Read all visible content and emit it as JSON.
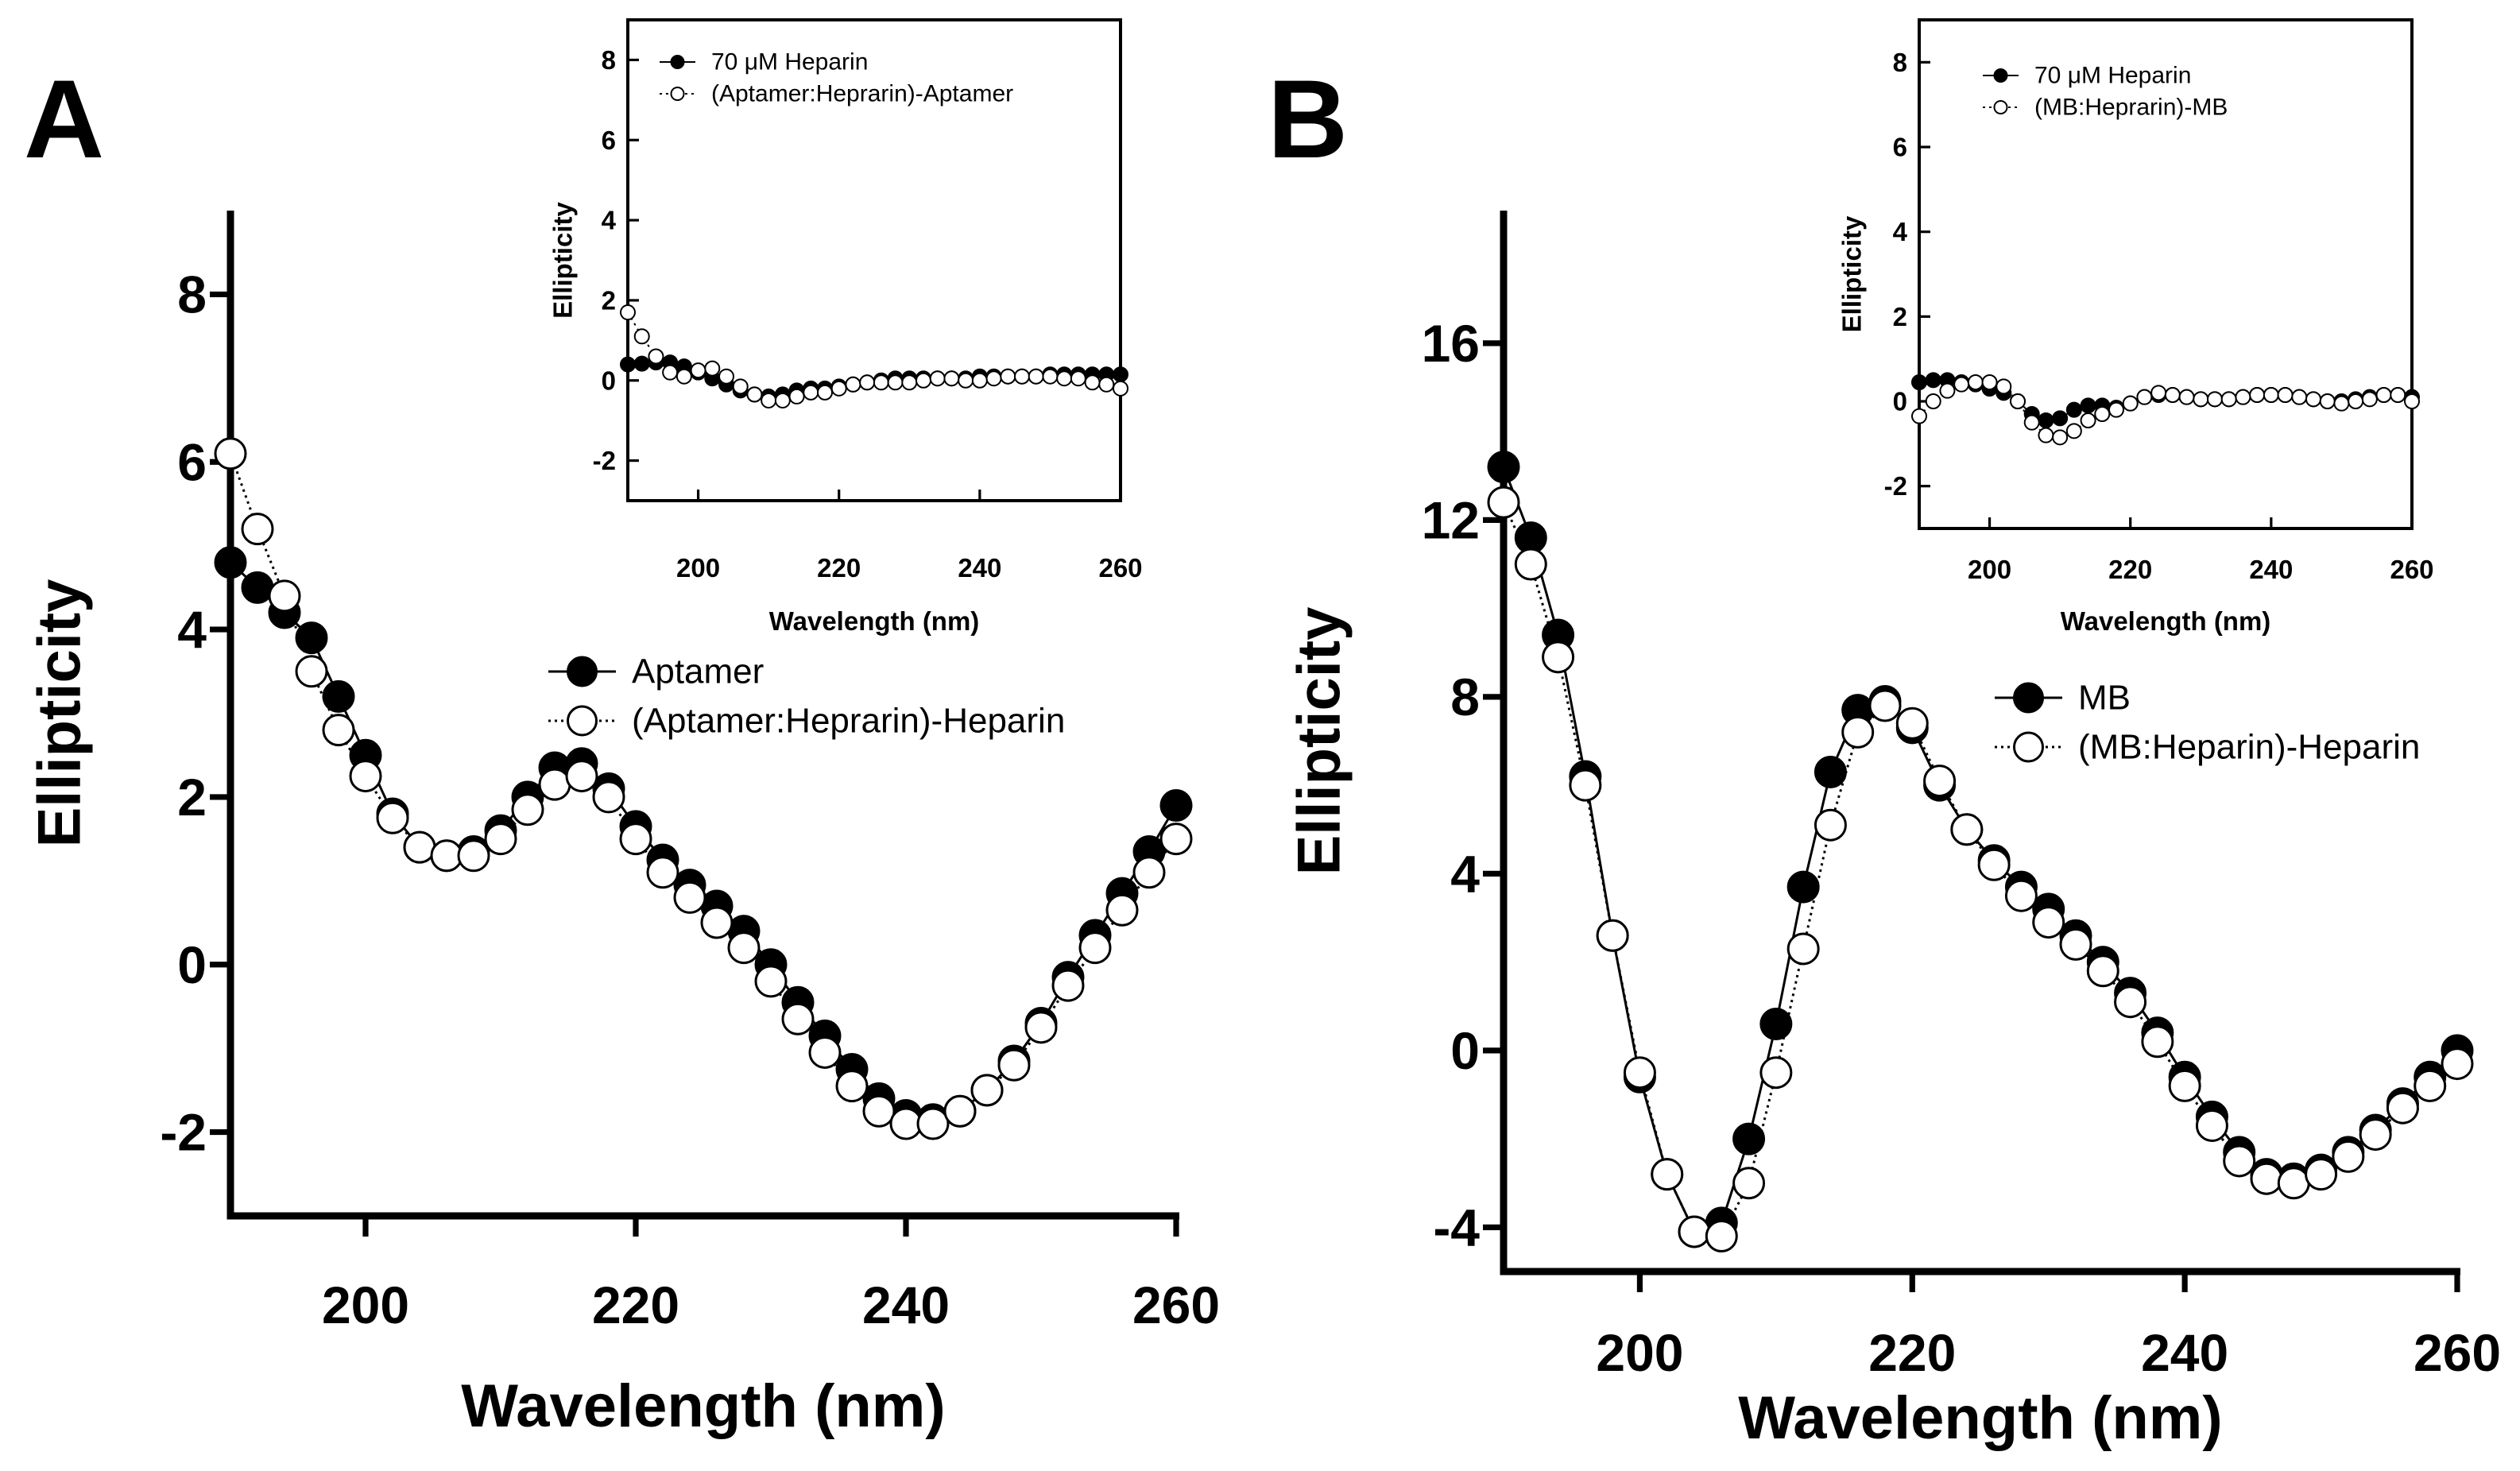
{
  "figure": {
    "panels": [
      {
        "label": "A",
        "main_chart": 0,
        "inset_chart": 1
      },
      {
        "label": "B",
        "main_chart": 2,
        "inset_chart": 3
      }
    ]
  },
  "chart_data": [
    {
      "id": "A-main",
      "type": "scatter",
      "title": "",
      "xlabel": "Wavelength (nm)",
      "ylabel": "Ellipticity",
      "xlim": [
        190,
        260
      ],
      "ylim": [
        -3,
        9
      ],
      "xticks": [
        200,
        220,
        240,
        260
      ],
      "yticks": [
        -2,
        0,
        2,
        4,
        6,
        8
      ],
      "grid": false,
      "legend": "center-right",
      "series": [
        {
          "name": "Aptamer",
          "marker": "filled-circle",
          "line": "solid",
          "x": [
            190,
            192,
            194,
            196,
            198,
            200,
            202,
            204,
            206,
            208,
            210,
            212,
            214,
            216,
            218,
            220,
            222,
            224,
            226,
            228,
            230,
            232,
            234,
            236,
            238,
            240,
            242,
            244,
            246,
            248,
            250,
            252,
            254,
            256,
            258,
            260
          ],
          "y": [
            4.8,
            4.5,
            4.2,
            3.9,
            3.2,
            2.5,
            1.8,
            1.4,
            1.3,
            1.35,
            1.6,
            2.0,
            2.35,
            2.4,
            2.1,
            1.65,
            1.25,
            0.95,
            0.7,
            0.4,
            0.0,
            -0.45,
            -0.85,
            -1.25,
            -1.6,
            -1.8,
            -1.85,
            -1.75,
            -1.5,
            -1.15,
            -0.7,
            -0.15,
            0.35,
            0.85,
            1.35,
            1.9
          ]
        },
        {
          "name": "(Aptamer:Heprarin)-Heparin",
          "marker": "open-circle",
          "line": "dotted",
          "x": [
            190,
            192,
            194,
            196,
            198,
            200,
            202,
            204,
            206,
            208,
            210,
            212,
            214,
            216,
            218,
            220,
            222,
            224,
            226,
            228,
            230,
            232,
            234,
            236,
            238,
            240,
            242,
            244,
            246,
            248,
            250,
            252,
            254,
            256,
            258,
            260
          ],
          "y": [
            6.1,
            5.2,
            4.4,
            3.5,
            2.8,
            2.25,
            1.75,
            1.4,
            1.3,
            1.3,
            1.5,
            1.85,
            2.15,
            2.25,
            2.0,
            1.5,
            1.1,
            0.8,
            0.5,
            0.2,
            -0.2,
            -0.65,
            -1.05,
            -1.45,
            -1.75,
            -1.9,
            -1.9,
            -1.75,
            -1.5,
            -1.2,
            -0.75,
            -0.25,
            0.2,
            0.65,
            1.1,
            1.5
          ]
        }
      ]
    },
    {
      "id": "A-inset",
      "type": "scatter",
      "title": "",
      "xlabel": "Wavelength (nm)",
      "ylabel": "Ellipticity",
      "xlim": [
        190,
        260
      ],
      "ylim": [
        -3,
        9
      ],
      "xticks": [
        200,
        220,
        240,
        260
      ],
      "yticks": [
        -2,
        0,
        2,
        4,
        6,
        8
      ],
      "grid": false,
      "legend": "top-left",
      "series": [
        {
          "name": "70 μM Heparin",
          "marker": "filled-circle",
          "line": "solid",
          "x": [
            190,
            192,
            194,
            196,
            198,
            200,
            202,
            204,
            206,
            208,
            210,
            212,
            214,
            216,
            218,
            220,
            222,
            224,
            226,
            228,
            230,
            232,
            234,
            236,
            238,
            240,
            242,
            244,
            246,
            248,
            250,
            252,
            254,
            256,
            258,
            260
          ],
          "y": [
            0.4,
            0.42,
            0.45,
            0.45,
            0.35,
            0.2,
            0.05,
            -0.1,
            -0.25,
            -0.35,
            -0.4,
            -0.35,
            -0.25,
            -0.2,
            -0.2,
            -0.15,
            -0.1,
            -0.05,
            0.0,
            0.05,
            0.05,
            0.05,
            0.05,
            0.05,
            0.05,
            0.1,
            0.1,
            0.1,
            0.1,
            0.1,
            0.15,
            0.15,
            0.15,
            0.15,
            0.15,
            0.15
          ]
        },
        {
          "name": "(Aptamer:Heprarin)-Aptamer",
          "marker": "open-circle",
          "line": "dotted",
          "x": [
            190,
            192,
            194,
            196,
            198,
            200,
            202,
            204,
            206,
            208,
            210,
            212,
            214,
            216,
            218,
            220,
            222,
            224,
            226,
            228,
            230,
            232,
            234,
            236,
            238,
            240,
            242,
            244,
            246,
            248,
            250,
            252,
            254,
            256,
            258,
            260
          ],
          "y": [
            1.7,
            1.1,
            0.6,
            0.2,
            0.1,
            0.25,
            0.3,
            0.1,
            -0.15,
            -0.35,
            -0.5,
            -0.5,
            -0.4,
            -0.3,
            -0.3,
            -0.2,
            -0.1,
            -0.05,
            -0.05,
            -0.05,
            -0.05,
            0.0,
            0.05,
            0.05,
            0.0,
            0.0,
            0.05,
            0.1,
            0.1,
            0.1,
            0.1,
            0.05,
            0.05,
            -0.05,
            -0.1,
            -0.2
          ]
        }
      ]
    },
    {
      "id": "B-main",
      "type": "scatter",
      "title": "",
      "xlabel": "Wavelength (nm)",
      "ylabel": "Ellipticity",
      "xlim": [
        190,
        260
      ],
      "ylim": [
        -5,
        19
      ],
      "xticks": [
        200,
        220,
        240,
        260
      ],
      "yticks": [
        -4,
        0,
        4,
        8,
        12,
        16
      ],
      "grid": false,
      "legend": "center-right",
      "series": [
        {
          "name": "MB",
          "marker": "filled-circle",
          "line": "solid",
          "x": [
            190,
            192,
            194,
            196,
            198,
            200,
            202,
            204,
            206,
            208,
            210,
            212,
            214,
            216,
            218,
            220,
            222,
            224,
            226,
            228,
            230,
            232,
            234,
            236,
            238,
            240,
            242,
            244,
            246,
            248,
            250,
            252,
            254,
            256,
            258,
            260
          ],
          "y": [
            13.2,
            11.6,
            9.4,
            6.2,
            2.6,
            -0.6,
            -2.8,
            -4.1,
            -3.9,
            -2.0,
            0.6,
            3.7,
            6.3,
            7.7,
            7.9,
            7.3,
            6.0,
            5.0,
            4.3,
            3.7,
            3.2,
            2.6,
            2.0,
            1.3,
            0.4,
            -0.6,
            -1.5,
            -2.3,
            -2.8,
            -2.9,
            -2.7,
            -2.3,
            -1.8,
            -1.2,
            -0.6,
            0.0
          ]
        },
        {
          "name": "(MB:Heparin)-Heparin",
          "marker": "open-circle",
          "line": "dotted",
          "x": [
            190,
            192,
            194,
            196,
            198,
            200,
            202,
            204,
            206,
            208,
            210,
            212,
            214,
            216,
            218,
            220,
            222,
            224,
            226,
            228,
            230,
            232,
            234,
            236,
            238,
            240,
            242,
            244,
            246,
            248,
            250,
            252,
            254,
            256,
            258,
            260
          ],
          "y": [
            12.4,
            11.0,
            8.9,
            6.0,
            2.6,
            -0.5,
            -2.8,
            -4.1,
            -4.2,
            -3.0,
            -0.5,
            2.3,
            5.1,
            7.2,
            7.8,
            7.4,
            6.1,
            5.0,
            4.2,
            3.5,
            2.9,
            2.4,
            1.8,
            1.1,
            0.2,
            -0.8,
            -1.7,
            -2.5,
            -2.9,
            -3.0,
            -2.8,
            -2.4,
            -1.9,
            -1.3,
            -0.8,
            -0.3
          ]
        }
      ]
    },
    {
      "id": "B-inset",
      "type": "scatter",
      "title": "",
      "xlabel": "Wavelength (nm)",
      "ylabel": "Ellipticity",
      "xlim": [
        190,
        260
      ],
      "ylim": [
        -3,
        9
      ],
      "xticks": [
        200,
        220,
        240,
        260
      ],
      "yticks": [
        -2,
        0,
        2,
        4,
        6,
        8
      ],
      "grid": false,
      "legend": "top-left",
      "series": [
        {
          "name": "70 μM Heparin",
          "marker": "filled-circle",
          "line": "solid",
          "x": [
            190,
            192,
            194,
            196,
            198,
            200,
            202,
            204,
            206,
            208,
            210,
            212,
            214,
            216,
            218,
            220,
            222,
            224,
            226,
            228,
            230,
            232,
            234,
            236,
            238,
            240,
            242,
            244,
            246,
            248,
            250,
            252,
            254,
            256,
            258,
            260
          ],
          "y": [
            0.45,
            0.5,
            0.5,
            0.45,
            0.4,
            0.3,
            0.2,
            0.0,
            -0.3,
            -0.45,
            -0.4,
            -0.2,
            -0.1,
            -0.1,
            -0.15,
            -0.05,
            0.1,
            0.15,
            0.15,
            0.1,
            0.05,
            0.05,
            0.05,
            0.1,
            0.15,
            0.15,
            0.15,
            0.1,
            0.05,
            0.0,
            0.0,
            0.05,
            0.1,
            0.15,
            0.15,
            0.1
          ]
        },
        {
          "name": "(MB:Heprarin)-MB",
          "marker": "open-circle",
          "line": "dotted",
          "x": [
            190,
            192,
            194,
            196,
            198,
            200,
            202,
            204,
            206,
            208,
            210,
            212,
            214,
            216,
            218,
            220,
            222,
            224,
            226,
            228,
            230,
            232,
            234,
            236,
            238,
            240,
            242,
            244,
            246,
            248,
            250,
            252,
            254,
            256,
            258,
            260
          ],
          "y": [
            -0.35,
            0.0,
            0.25,
            0.4,
            0.45,
            0.45,
            0.35,
            0.0,
            -0.5,
            -0.8,
            -0.85,
            -0.7,
            -0.45,
            -0.3,
            -0.2,
            -0.05,
            0.1,
            0.2,
            0.15,
            0.1,
            0.05,
            0.05,
            0.05,
            0.1,
            0.15,
            0.15,
            0.15,
            0.1,
            0.05,
            0.0,
            -0.05,
            0.0,
            0.05,
            0.15,
            0.15,
            0.0
          ]
        }
      ]
    }
  ]
}
